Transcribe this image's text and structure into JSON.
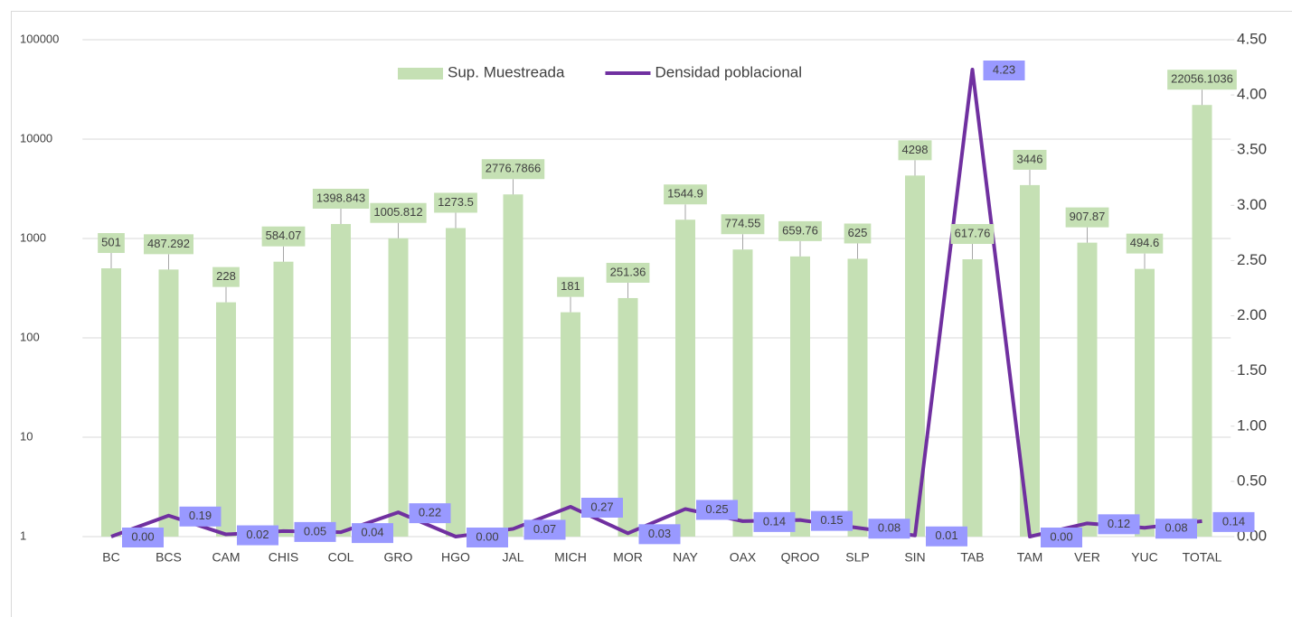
{
  "chart_data": {
    "type": "bar-line",
    "categories": [
      "BC",
      "BCS",
      "CAM",
      "CHIS",
      "COL",
      "GRO",
      "HGO",
      "JAL",
      "MICH",
      "MOR",
      "NAY",
      "OAX",
      "QROO",
      "SLP",
      "SIN",
      "TAB",
      "TAM",
      "VER",
      "YUC",
      "TOTAL"
    ],
    "series": [
      {
        "name": "Sup. Muestreada",
        "type": "bar",
        "color": "#c5e0b4",
        "values": [
          501,
          487.292,
          228,
          584.07,
          1398.843,
          1005.812,
          1273.5,
          2776.7866,
          181,
          251.36,
          1544.9,
          774.55,
          659.76,
          625,
          4298,
          617.76,
          3446,
          907.87,
          494.6,
          22056.1036
        ]
      },
      {
        "name": "Densidad poblacional",
        "type": "line",
        "color": "#7030a0",
        "axis": "y2",
        "values": [
          0,
          0.19,
          0.02,
          0.05,
          0.04,
          0.22,
          0,
          0.07,
          0.27,
          0.03,
          0.25,
          0.14,
          0.15,
          0.08,
          0.01,
          4.23,
          0,
          0.12,
          0.08,
          0.14
        ],
        "value_labels": [
          "0.00",
          "0.19",
          "0.02",
          "0.05",
          "0.04",
          "0.22",
          "0.00",
          "0.07",
          "0.27",
          "0.03",
          "0.25",
          "0.14",
          "0.15",
          "0.08",
          "0.01",
          "4.23",
          "0.00",
          "0.12",
          "0.08",
          "0.14"
        ]
      }
    ],
    "ylim": [
      1,
      100000
    ],
    "yscale": "log",
    "yticks": [
      1,
      10,
      100,
      1000,
      10000,
      100000
    ],
    "y2lim": [
      0,
      4.5
    ],
    "y2ticks": [
      {
        "value": 0,
        "label": "0.00"
      },
      {
        "value": 0.5,
        "label": "0.50"
      },
      {
        "value": 1,
        "label": "1.00"
      },
      {
        "value": 1.5,
        "label": "1.50"
      },
      {
        "value": 2,
        "label": "2.00"
      },
      {
        "value": 2.5,
        "label": "2.50"
      },
      {
        "value": 3,
        "label": "3.00"
      },
      {
        "value": 3.5,
        "label": "3.50"
      },
      {
        "value": 4,
        "label": "4.00"
      },
      {
        "value": 4.5,
        "label": "4.50"
      }
    ],
    "grid": true,
    "legend": "top"
  }
}
